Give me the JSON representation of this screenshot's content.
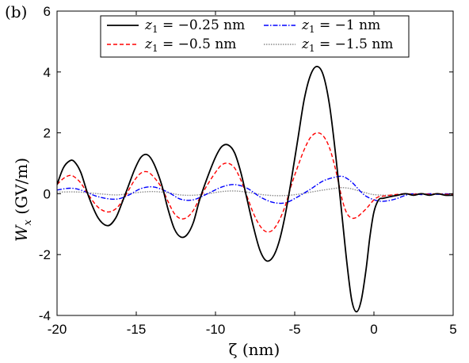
{
  "chart_data": {
    "type": "line",
    "panel_label": "(b)",
    "xlabel": "ζ (nm)",
    "ylabel": "W_x (GV/m)",
    "ylabel_main": "W",
    "ylabel_sub": "x",
    "ylabel_unit": " (GV/m)",
    "xlim": [
      -20,
      5
    ],
    "ylim": [
      -4,
      6
    ],
    "xticks": [
      -20,
      -15,
      -10,
      -5,
      0,
      5
    ],
    "xtick_labels": [
      "-20",
      "-15",
      "-10",
      "-5",
      "0",
      "5"
    ],
    "yticks": [
      -4,
      -2,
      0,
      2,
      4,
      6
    ],
    "ytick_labels": [
      "-4",
      "-2",
      "0",
      "2",
      "4",
      "6"
    ],
    "grid": false,
    "legend_position": "top",
    "series": [
      {
        "name": "z1 = −0.25 nm",
        "legend_var": "z",
        "legend_sub": "1",
        "legend_value": " = −0.25 nm",
        "color": "#000000",
        "style": "solid",
        "amplitude_scale": 1.0,
        "x": [
          -20,
          -19.6,
          -19.2,
          -18.9,
          -18.5,
          -18,
          -17.4,
          -16.8,
          -16.3,
          -15.9,
          -15.5,
          -15.1,
          -14.7,
          -14.3,
          -13.9,
          -13.4,
          -13.0,
          -12.6,
          -12.2,
          -11.8,
          -11.4,
          -11.0,
          -10.5,
          -10.0,
          -9.6,
          -9.2,
          -8.8,
          -8.4,
          -8.0,
          -7.6,
          -7.2,
          -6.8,
          -6.4,
          -6.0,
          -5.6,
          -5.2,
          -4.8,
          -4.4,
          -4.0,
          -3.6,
          -3.2,
          -2.8,
          -2.4,
          -2.0,
          -1.7,
          -1.4,
          -1.1,
          -0.8,
          -0.5,
          -0.25,
          0.0,
          0.3,
          0.6,
          1.0,
          1.5,
          2.0,
          2.5,
          3.0,
          3.5,
          4.0,
          4.5,
          5.0
        ],
        "y": [
          0.3,
          0.85,
          1.08,
          1.05,
          0.7,
          -0.1,
          -0.8,
          -1.05,
          -0.8,
          -0.3,
          0.25,
          0.8,
          1.2,
          1.28,
          1.0,
          0.3,
          -0.5,
          -1.15,
          -1.42,
          -1.35,
          -0.95,
          -0.2,
          0.55,
          1.2,
          1.55,
          1.6,
          1.35,
          0.7,
          -0.2,
          -1.1,
          -1.85,
          -2.2,
          -2.1,
          -1.6,
          -0.7,
          0.5,
          1.8,
          3.1,
          3.9,
          4.18,
          3.9,
          2.9,
          1.2,
          -0.8,
          -2.3,
          -3.5,
          -3.88,
          -3.5,
          -2.5,
          -1.4,
          -0.6,
          -0.2,
          -0.15,
          -0.1,
          -0.05,
          0.0,
          -0.05,
          0.0,
          -0.05,
          0.0,
          -0.05,
          -0.05
        ]
      },
      {
        "name": "z1 = −0.5 nm",
        "legend_var": "z",
        "legend_sub": "1",
        "legend_value": " = −0.5 nm",
        "color": "#ff0000",
        "style": "dashed",
        "x": [
          -20,
          -19.6,
          -19.2,
          -18.9,
          -18.5,
          -18,
          -17.4,
          -16.8,
          -16.3,
          -15.9,
          -15.5,
          -15.1,
          -14.7,
          -14.3,
          -13.9,
          -13.4,
          -13.0,
          -12.6,
          -12.2,
          -11.8,
          -11.4,
          -11.0,
          -10.5,
          -10.0,
          -9.6,
          -9.2,
          -8.8,
          -8.4,
          -8.0,
          -7.6,
          -7.2,
          -6.8,
          -6.4,
          -6.0,
          -5.6,
          -5.2,
          -4.8,
          -4.4,
          -4.0,
          -3.6,
          -3.2,
          -2.8,
          -2.4,
          -2.0,
          -1.7,
          -1.4,
          -1.1,
          -0.8,
          -0.5,
          -0.25,
          0.0,
          0.3,
          0.6,
          1.0,
          1.5,
          2.0,
          2.5,
          3.0,
          3.5,
          4.0,
          4.5,
          5.0
        ],
        "y": [
          0.3,
          0.5,
          0.6,
          0.55,
          0.35,
          -0.05,
          -0.45,
          -0.6,
          -0.5,
          -0.25,
          0.1,
          0.45,
          0.68,
          0.72,
          0.55,
          0.2,
          -0.25,
          -0.65,
          -0.82,
          -0.78,
          -0.55,
          -0.15,
          0.3,
          0.7,
          0.95,
          1.0,
          0.85,
          0.45,
          -0.1,
          -0.65,
          -1.05,
          -1.25,
          -1.2,
          -0.9,
          -0.4,
          0.3,
          0.9,
          1.45,
          1.85,
          2.0,
          1.9,
          1.5,
          0.75,
          -0.2,
          -0.65,
          -0.8,
          -0.78,
          -0.65,
          -0.5,
          -0.35,
          -0.2,
          -0.1,
          -0.08,
          -0.05,
          -0.02,
          0.0,
          -0.02,
          0.0,
          -0.02,
          0.0,
          -0.02,
          -0.02
        ]
      },
      {
        "name": "z1 = −1 nm",
        "legend_var": "z",
        "legend_sub": "1",
        "legend_value": " = −1 nm",
        "color": "#0000ff",
        "style": "dashdot",
        "x": [
          -20,
          -19.2,
          -18.5,
          -17.4,
          -16.3,
          -15.5,
          -14.7,
          -13.9,
          -13.0,
          -12.2,
          -11.4,
          -10.5,
          -9.6,
          -8.8,
          -8.0,
          -7.2,
          -6.4,
          -5.6,
          -4.8,
          -4.0,
          -3.2,
          -2.4,
          -2.0,
          -1.7,
          -1.4,
          -1.1,
          -0.8,
          -0.5,
          0.0,
          0.5,
          1.0,
          1.5,
          2.0,
          2.5,
          3.0,
          3.5,
          4.0,
          4.5,
          5.0
        ],
        "y": [
          0.12,
          0.18,
          0.12,
          -0.1,
          -0.18,
          -0.05,
          0.17,
          0.22,
          0.05,
          -0.18,
          -0.2,
          0.0,
          0.22,
          0.3,
          0.18,
          -0.1,
          -0.28,
          -0.3,
          -0.1,
          0.15,
          0.42,
          0.55,
          0.57,
          0.5,
          0.38,
          0.22,
          0.05,
          -0.08,
          -0.2,
          -0.25,
          -0.22,
          -0.15,
          -0.05,
          0.0,
          -0.03,
          0.0,
          -0.02,
          0.0,
          -0.02
        ]
      },
      {
        "name": "z1 = −1.5 nm",
        "legend_var": "z",
        "legend_sub": "1",
        "legend_value": " = −1.5 nm",
        "color": "#8c8c8c",
        "style": "dotted",
        "x": [
          -20,
          -19.2,
          -18.5,
          -17.4,
          -16.3,
          -15.5,
          -14.7,
          -13.9,
          -13.0,
          -12.2,
          -11.4,
          -10.5,
          -9.6,
          -8.8,
          -8.0,
          -7.2,
          -6.4,
          -5.6,
          -4.8,
          -4.0,
          -3.2,
          -2.4,
          -2.0,
          -1.5,
          -1.0,
          -0.5,
          0.0,
          1.0,
          2.0,
          3.0,
          4.0,
          5.0
        ],
        "y": [
          0.05,
          0.06,
          0.05,
          0.0,
          -0.04,
          0.0,
          0.05,
          0.07,
          0.03,
          -0.04,
          -0.05,
          0.0,
          0.07,
          0.09,
          0.05,
          -0.02,
          -0.06,
          -0.06,
          -0.02,
          0.05,
          0.12,
          0.18,
          0.2,
          0.17,
          0.1,
          0.03,
          -0.03,
          -0.05,
          -0.02,
          0.0,
          -0.01,
          0.0
        ]
      }
    ]
  }
}
